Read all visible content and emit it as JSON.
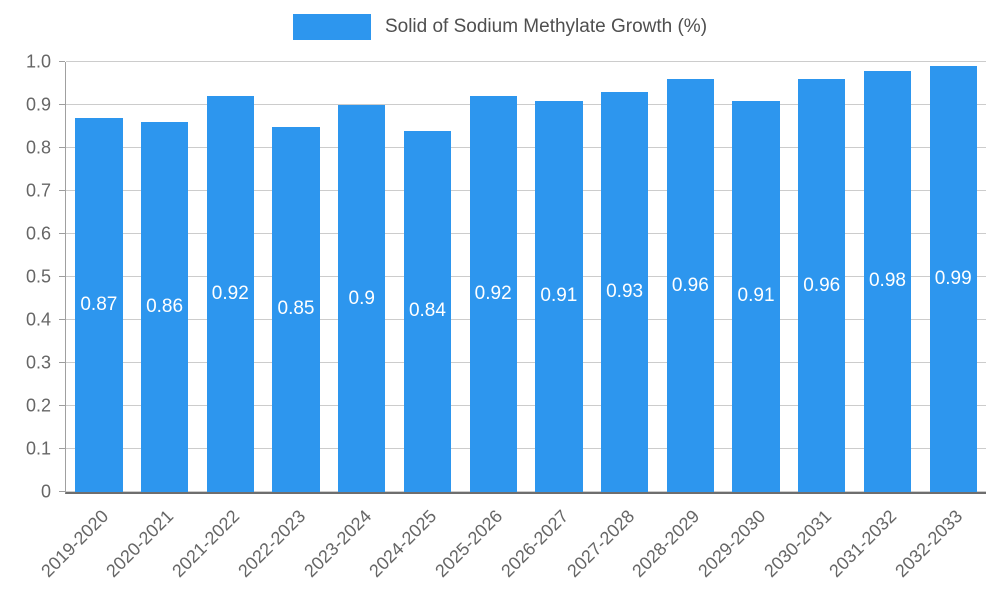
{
  "legend": {
    "label": "Solid of Sodium Methylate Growth (%)",
    "swatch_color": "#2d96ee"
  },
  "chart_data": {
    "type": "bar",
    "title": "Solid of Sodium Methylate Growth (%)",
    "categories": [
      "2019-2020",
      "2020-2021",
      "2021-2022",
      "2022-2023",
      "2023-2024",
      "2024-2025",
      "2025-2026",
      "2026-2027",
      "2027-2028",
      "2028-2029",
      "2029-2030",
      "2030-2031",
      "2031-2032",
      "2032-2033"
    ],
    "values": [
      0.87,
      0.86,
      0.92,
      0.85,
      0.9,
      0.84,
      0.92,
      0.91,
      0.93,
      0.96,
      0.91,
      0.96,
      0.98,
      0.99
    ],
    "value_labels": [
      "0.87",
      "0.86",
      "0.92",
      "0.85",
      "0.9",
      "0.84",
      "0.92",
      "0.91",
      "0.93",
      "0.96",
      "0.91",
      "0.96",
      "0.98",
      "0.99"
    ],
    "xlabel": "",
    "ylabel": "",
    "ylim": [
      0,
      1.0
    ],
    "yticks": [
      "0",
      "0.1",
      "0.2",
      "0.3",
      "0.4",
      "0.5",
      "0.6",
      "0.7",
      "0.8",
      "0.9",
      "1.0"
    ],
    "grid": true,
    "legend_position": "top",
    "bar_color": "#2d96ee",
    "value_label_color": "#ffffff",
    "axis_text_color": "#666666",
    "gridline_color": "#cccccc"
  }
}
